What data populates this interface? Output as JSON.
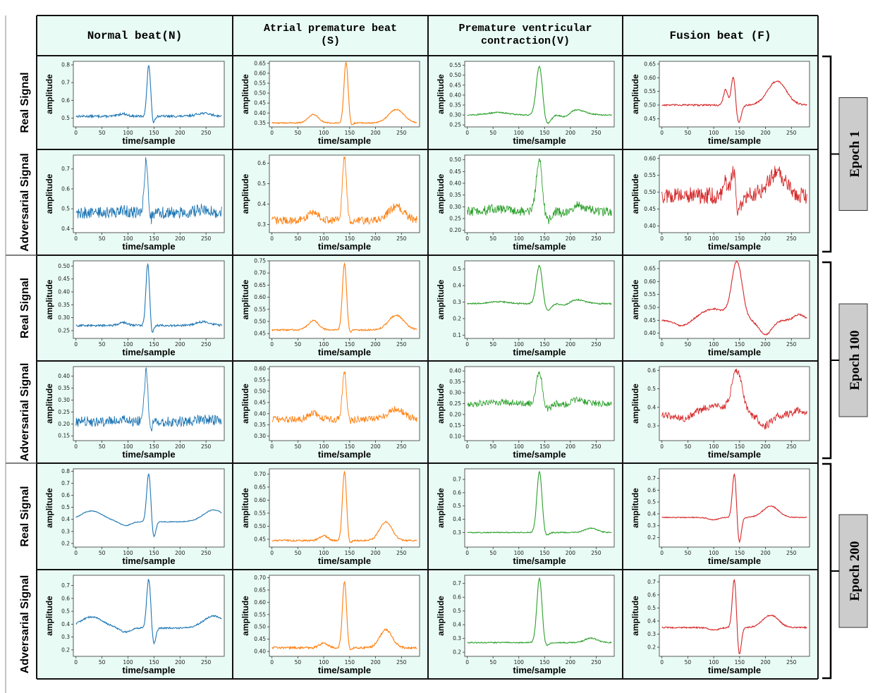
{
  "columns": [
    {
      "label_lines": [
        "Normal beat(N)"
      ],
      "color": "#1f77b4"
    },
    {
      "label_lines": [
        "Atrial premature beat",
        "(S)"
      ],
      "color": "#ff7f0e"
    },
    {
      "label_lines": [
        "Premature ventricular",
        "contraction(V)"
      ],
      "color": "#2ca02c"
    },
    {
      "label_lines": [
        "Fusion beat (F)"
      ],
      "color": "#d62728"
    }
  ],
  "row_labels": {
    "real": "Real Signal",
    "adversarial": "Adversarial Signal"
  },
  "epochs": [
    "Epoch 1",
    "Epoch 100",
    "Epoch 200"
  ],
  "colors": {
    "header_bg": "#e8fbf4",
    "panel_bg": "#e8fbf4",
    "epoch_box": "#cccccc"
  },
  "chart_data": [
    {
      "type": "line",
      "epoch": "Epoch 1",
      "row": "Real Signal",
      "column": "Normal beat(N)",
      "xlabel": "time/sample",
      "ylabel": "amplitude",
      "xlim": [
        -5,
        285
      ],
      "ylim": [
        0.45,
        0.82
      ],
      "xticks": [
        0,
        50,
        100,
        150,
        200,
        250
      ],
      "yticks": [
        0.5,
        0.6,
        0.7,
        0.8
      ],
      "shape": "N",
      "base": 0.51,
      "peak": 0.8,
      "peak_x": 140,
      "noise": 0.006
    },
    {
      "type": "line",
      "epoch": "Epoch 1",
      "row": "Real Signal",
      "column": "Atrial premature beat (S)",
      "xlabel": "time/sample",
      "ylabel": "amplitude",
      "xlim": [
        -5,
        285
      ],
      "ylim": [
        0.33,
        0.66
      ],
      "xticks": [
        0,
        50,
        100,
        150,
        200,
        250
      ],
      "yticks": [
        0.35,
        0.4,
        0.45,
        0.5,
        0.55,
        0.6,
        0.65
      ],
      "shape": "S",
      "base": 0.35,
      "peak": 0.655,
      "peak_x": 143,
      "noise": 0.003
    },
    {
      "type": "line",
      "epoch": "Epoch 1",
      "row": "Real Signal",
      "column": "Premature ventricular contraction(V)",
      "xlabel": "time/sample",
      "ylabel": "amplitude",
      "xlim": [
        -5,
        285
      ],
      "ylim": [
        0.24,
        0.57
      ],
      "xticks": [
        0,
        50,
        100,
        150,
        200,
        250
      ],
      "yticks": [
        0.25,
        0.3,
        0.35,
        0.4,
        0.45,
        0.5,
        0.55
      ],
      "shape": "V",
      "base": 0.3,
      "peak": 0.555,
      "peak_x": 140,
      "noise": 0.003
    },
    {
      "type": "line",
      "epoch": "Epoch 1",
      "row": "Real Signal",
      "column": "Fusion beat (F)",
      "xlabel": "time/sample",
      "ylabel": "amplitude",
      "xlim": [
        -5,
        285
      ],
      "ylim": [
        0.42,
        0.66
      ],
      "xticks": [
        0,
        50,
        100,
        150,
        200,
        250
      ],
      "yticks": [
        0.45,
        0.5,
        0.55,
        0.6,
        0.65
      ],
      "shape": "F",
      "base": 0.5,
      "peak": 0.645,
      "peak_x": 138,
      "noise": 0.003
    },
    {
      "type": "line",
      "epoch": "Epoch 1",
      "row": "Adversarial Signal",
      "column": "Normal beat(N)",
      "xlabel": "time/sample",
      "ylabel": "amplitude",
      "xlim": [
        -5,
        285
      ],
      "ylim": [
        0.38,
        0.77
      ],
      "xticks": [
        0,
        50,
        100,
        150,
        200,
        250
      ],
      "yticks": [
        0.4,
        0.5,
        0.6,
        0.7
      ],
      "shape": "N",
      "base": 0.48,
      "peak": 0.75,
      "peak_x": 135,
      "noise": 0.03
    },
    {
      "type": "line",
      "epoch": "Epoch 1",
      "row": "Adversarial Signal",
      "column": "Atrial premature beat (S)",
      "xlabel": "time/sample",
      "ylabel": "amplitude",
      "xlim": [
        -5,
        285
      ],
      "ylim": [
        0.26,
        0.64
      ],
      "xticks": [
        0,
        50,
        100,
        150,
        200,
        250
      ],
      "yticks": [
        0.3,
        0.4,
        0.5,
        0.6
      ],
      "shape": "S",
      "base": 0.32,
      "peak": 0.625,
      "peak_x": 140,
      "noise": 0.02
    },
    {
      "type": "line",
      "epoch": "Epoch 1",
      "row": "Adversarial Signal",
      "column": "Premature ventricular contraction(V)",
      "xlabel": "time/sample",
      "ylabel": "amplitude",
      "xlim": [
        -5,
        285
      ],
      "ylim": [
        0.19,
        0.52
      ],
      "xticks": [
        0,
        50,
        100,
        150,
        200,
        250
      ],
      "yticks": [
        0.2,
        0.25,
        0.3,
        0.35,
        0.4,
        0.45,
        0.5
      ],
      "shape": "V",
      "base": 0.28,
      "peak": 0.51,
      "peak_x": 140,
      "noise": 0.02
    },
    {
      "type": "line",
      "epoch": "Epoch 1",
      "row": "Adversarial Signal",
      "column": "Fusion beat (F)",
      "xlabel": "time/sample",
      "ylabel": "amplitude",
      "xlim": [
        -5,
        285
      ],
      "ylim": [
        0.38,
        0.61
      ],
      "xticks": [
        0,
        50,
        100,
        150,
        200,
        250
      ],
      "yticks": [
        0.4,
        0.45,
        0.5,
        0.55,
        0.6
      ],
      "shape": "F",
      "base": 0.49,
      "peak": 0.6,
      "peak_x": 138,
      "noise": 0.025
    },
    {
      "type": "line",
      "epoch": "Epoch 100",
      "row": "Real Signal",
      "column": "Normal beat(N)",
      "xlabel": "time/sample",
      "ylabel": "amplitude",
      "xlim": [
        -5,
        285
      ],
      "ylim": [
        0.22,
        0.52
      ],
      "xticks": [
        0,
        50,
        100,
        150,
        200,
        250
      ],
      "yticks": [
        0.25,
        0.3,
        0.35,
        0.4,
        0.45,
        0.5
      ],
      "shape": "N",
      "base": 0.27,
      "peak": 0.51,
      "peak_x": 138,
      "noise": 0.004
    },
    {
      "type": "line",
      "epoch": "Epoch 100",
      "row": "Real Signal",
      "column": "Atrial premature beat (S)",
      "xlabel": "time/sample",
      "ylabel": "amplitude",
      "xlim": [
        -5,
        285
      ],
      "ylim": [
        0.43,
        0.75
      ],
      "xticks": [
        0,
        50,
        100,
        150,
        200,
        250
      ],
      "yticks": [
        0.45,
        0.5,
        0.55,
        0.6,
        0.65,
        0.7,
        0.75
      ],
      "shape": "S",
      "base": 0.465,
      "peak": 0.74,
      "peak_x": 140,
      "noise": 0.003
    },
    {
      "type": "line",
      "epoch": "Epoch 100",
      "row": "Real Signal",
      "column": "Premature ventricular contraction(V)",
      "xlabel": "time/sample",
      "ylabel": "amplitude",
      "xlim": [
        -5,
        285
      ],
      "ylim": [
        0.08,
        0.55
      ],
      "xticks": [
        0,
        50,
        100,
        150,
        200,
        250
      ],
      "yticks": [
        0.1,
        0.2,
        0.3,
        0.4,
        0.5
      ],
      "shape": "V",
      "base": 0.29,
      "peak": 0.53,
      "peak_x": 140,
      "noise": 0.004
    },
    {
      "type": "line",
      "epoch": "Epoch 100",
      "row": "Real Signal",
      "column": "Fusion beat (F)",
      "xlabel": "time/sample",
      "ylabel": "amplitude",
      "xlim": [
        -5,
        285
      ],
      "ylim": [
        0.38,
        0.68
      ],
      "xticks": [
        0,
        50,
        100,
        150,
        200,
        250
      ],
      "yticks": [
        0.4,
        0.45,
        0.5,
        0.55,
        0.6,
        0.65
      ],
      "shape": "F2",
      "base": 0.45,
      "peak": 0.67,
      "peak_x": 145,
      "noise": 0.003
    },
    {
      "type": "line",
      "epoch": "Epoch 100",
      "row": "Adversarial Signal",
      "column": "Normal beat(N)",
      "xlabel": "time/sample",
      "ylabel": "amplitude",
      "xlim": [
        -5,
        285
      ],
      "ylim": [
        0.13,
        0.44
      ],
      "xticks": [
        0,
        50,
        100,
        150,
        200,
        250
      ],
      "yticks": [
        0.15,
        0.2,
        0.25,
        0.3,
        0.35,
        0.4
      ],
      "shape": "N",
      "base": 0.21,
      "peak": 0.42,
      "peak_x": 135,
      "noise": 0.022
    },
    {
      "type": "line",
      "epoch": "Epoch 100",
      "row": "Adversarial Signal",
      "column": "Atrial premature beat (S)",
      "xlabel": "time/sample",
      "ylabel": "amplitude",
      "xlim": [
        -5,
        285
      ],
      "ylim": [
        0.28,
        0.61
      ],
      "xticks": [
        0,
        50,
        100,
        150,
        200,
        250
      ],
      "yticks": [
        0.3,
        0.35,
        0.4,
        0.45,
        0.5,
        0.55,
        0.6
      ],
      "shape": "S",
      "base": 0.375,
      "peak": 0.585,
      "peak_x": 140,
      "noise": 0.015
    },
    {
      "type": "line",
      "epoch": "Epoch 100",
      "row": "Adversarial Signal",
      "column": "Premature ventricular contraction(V)",
      "xlabel": "time/sample",
      "ylabel": "amplitude",
      "xlim": [
        -5,
        285
      ],
      "ylim": [
        0.08,
        0.42
      ],
      "xticks": [
        0,
        50,
        100,
        150,
        200,
        250
      ],
      "yticks": [
        0.1,
        0.15,
        0.2,
        0.25,
        0.3,
        0.35,
        0.4
      ],
      "shape": "V",
      "base": 0.25,
      "peak": 0.4,
      "peak_x": 140,
      "noise": 0.015
    },
    {
      "type": "line",
      "epoch": "Epoch 100",
      "row": "Adversarial Signal",
      "column": "Fusion beat (F)",
      "xlabel": "time/sample",
      "ylabel": "amplitude",
      "xlim": [
        -5,
        285
      ],
      "ylim": [
        0.22,
        0.62
      ],
      "xticks": [
        0,
        50,
        100,
        150,
        200,
        250
      ],
      "yticks": [
        0.3,
        0.4,
        0.5,
        0.6
      ],
      "shape": "F2",
      "base": 0.36,
      "peak": 0.59,
      "peak_x": 145,
      "noise": 0.02
    },
    {
      "type": "line",
      "epoch": "Epoch 200",
      "row": "Real Signal",
      "column": "Normal beat(N)",
      "xlabel": "time/sample",
      "ylabel": "amplitude",
      "xlim": [
        -5,
        285
      ],
      "ylim": [
        0.17,
        0.82
      ],
      "xticks": [
        0,
        50,
        100,
        150,
        200,
        250
      ],
      "yticks": [
        0.2,
        0.3,
        0.4,
        0.5,
        0.6,
        0.7,
        0.8
      ],
      "shape": "N2",
      "base": 0.38,
      "peak": 0.79,
      "peak_x": 140,
      "noise": 0.003
    },
    {
      "type": "line",
      "epoch": "Epoch 200",
      "row": "Real Signal",
      "column": "Atrial premature beat (S)",
      "xlabel": "time/sample",
      "ylabel": "amplitude",
      "xlim": [
        -5,
        285
      ],
      "ylim": [
        0.42,
        0.72
      ],
      "xticks": [
        0,
        50,
        100,
        150,
        200,
        250
      ],
      "yticks": [
        0.45,
        0.5,
        0.55,
        0.6,
        0.65,
        0.7
      ],
      "shape": "S2",
      "base": 0.445,
      "peak": 0.71,
      "peak_x": 140,
      "noise": 0.003
    },
    {
      "type": "line",
      "epoch": "Epoch 200",
      "row": "Real Signal",
      "column": "Premature ventricular contraction(V)",
      "xlabel": "time/sample",
      "ylabel": "amplitude",
      "xlim": [
        -5,
        285
      ],
      "ylim": [
        0.19,
        0.78
      ],
      "xticks": [
        0,
        50,
        100,
        150,
        200,
        250
      ],
      "yticks": [
        0.3,
        0.4,
        0.5,
        0.6,
        0.7
      ],
      "shape": "V2",
      "base": 0.3,
      "peak": 0.76,
      "peak_x": 140,
      "noise": 0.004
    },
    {
      "type": "line",
      "epoch": "Epoch 200",
      "row": "Real Signal",
      "column": "Fusion beat (F)",
      "xlabel": "time/sample",
      "ylabel": "amplitude",
      "xlim": [
        -5,
        285
      ],
      "ylim": [
        0.12,
        0.78
      ],
      "xticks": [
        0,
        50,
        100,
        150,
        200,
        250
      ],
      "yticks": [
        0.2,
        0.3,
        0.4,
        0.5,
        0.6,
        0.7
      ],
      "shape": "F3",
      "base": 0.37,
      "peak": 0.75,
      "peak_x": 140,
      "noise": 0.004
    },
    {
      "type": "line",
      "epoch": "Epoch 200",
      "row": "Adversarial Signal",
      "column": "Normal beat(N)",
      "xlabel": "time/sample",
      "ylabel": "amplitude",
      "xlim": [
        -5,
        285
      ],
      "ylim": [
        0.15,
        0.78
      ],
      "xticks": [
        0,
        50,
        100,
        150,
        200,
        250
      ],
      "yticks": [
        0.2,
        0.3,
        0.4,
        0.5,
        0.6,
        0.7
      ],
      "shape": "N2",
      "base": 0.37,
      "peak": 0.76,
      "peak_x": 140,
      "noise": 0.006
    },
    {
      "type": "line",
      "epoch": "Epoch 200",
      "row": "Adversarial Signal",
      "column": "Atrial premature beat (S)",
      "xlabel": "time/sample",
      "ylabel": "amplitude",
      "xlim": [
        -5,
        285
      ],
      "ylim": [
        0.38,
        0.71
      ],
      "xticks": [
        0,
        50,
        100,
        150,
        200,
        250
      ],
      "yticks": [
        0.4,
        0.45,
        0.5,
        0.55,
        0.6,
        0.65,
        0.7
      ],
      "shape": "S2",
      "base": 0.415,
      "peak": 0.685,
      "peak_x": 140,
      "noise": 0.004
    },
    {
      "type": "line",
      "epoch": "Epoch 200",
      "row": "Adversarial Signal",
      "column": "Premature ventricular contraction(V)",
      "xlabel": "time/sample",
      "ylabel": "amplitude",
      "xlim": [
        -5,
        285
      ],
      "ylim": [
        0.17,
        0.76
      ],
      "xticks": [
        0,
        50,
        100,
        150,
        200,
        250
      ],
      "yticks": [
        0.2,
        0.3,
        0.4,
        0.5,
        0.6,
        0.7
      ],
      "shape": "V2",
      "base": 0.27,
      "peak": 0.74,
      "peak_x": 140,
      "noise": 0.004
    },
    {
      "type": "line",
      "epoch": "Epoch 200",
      "row": "Adversarial Signal",
      "column": "Fusion beat (F)",
      "xlabel": "time/sample",
      "ylabel": "amplitude",
      "xlim": [
        -5,
        285
      ],
      "ylim": [
        0.13,
        0.75
      ],
      "xticks": [
        0,
        50,
        100,
        150,
        200,
        250
      ],
      "yticks": [
        0.2,
        0.3,
        0.4,
        0.5,
        0.6,
        0.7
      ],
      "shape": "F3",
      "base": 0.35,
      "peak": 0.73,
      "peak_x": 140,
      "noise": 0.005
    }
  ]
}
